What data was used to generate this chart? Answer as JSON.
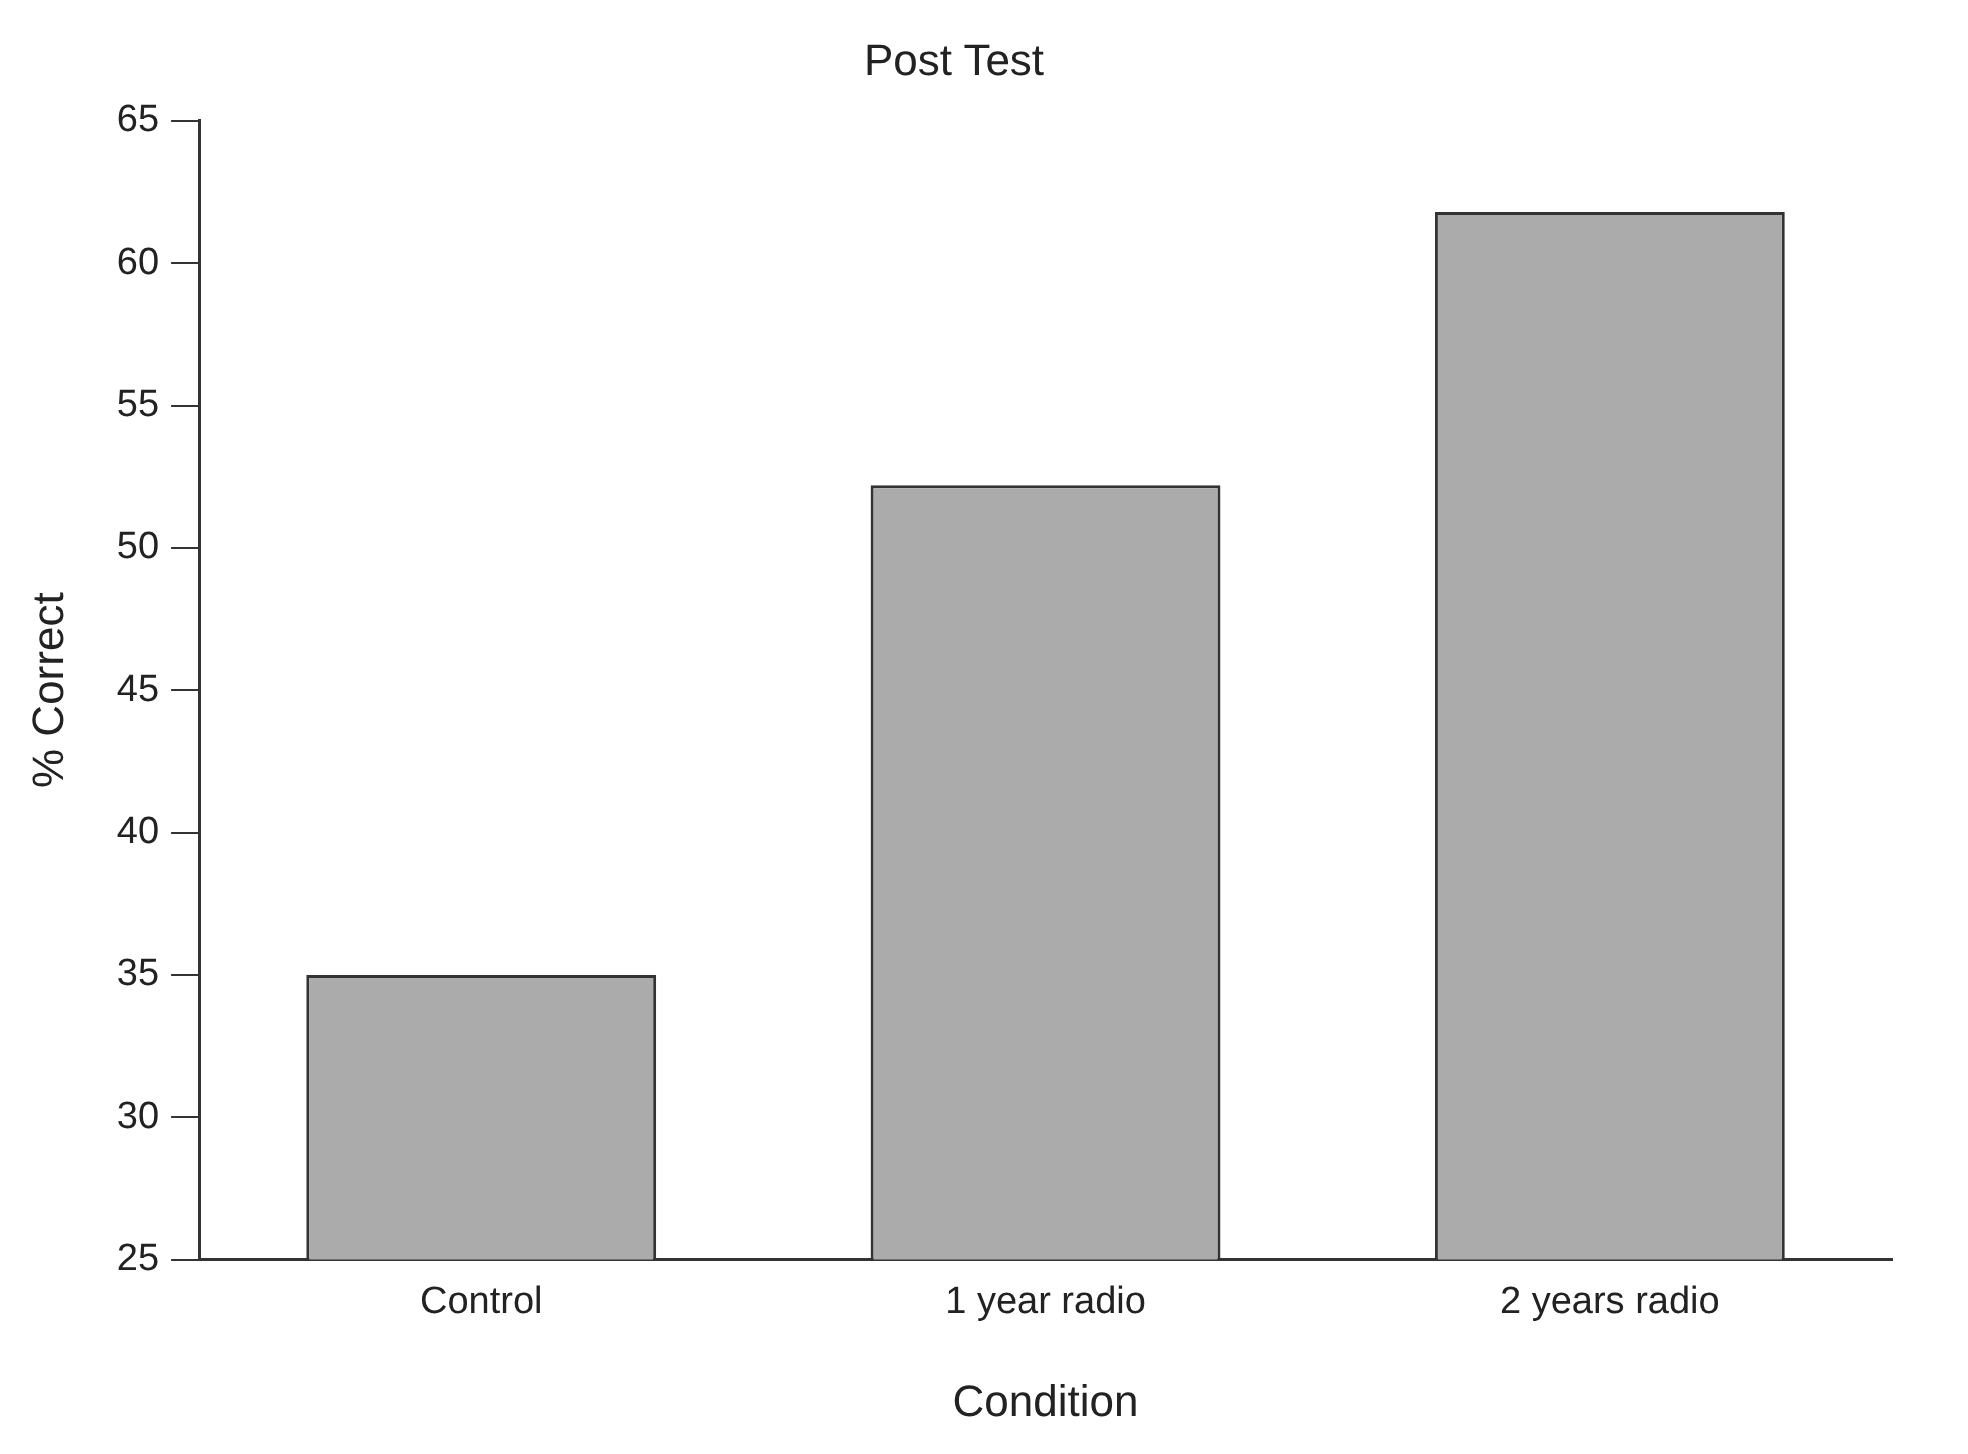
{
  "chart_data": {
    "type": "bar",
    "title": "Post Test",
    "xlabel": "Condition",
    "ylabel": "% Correct",
    "categories": [
      "Control",
      "1 year radio",
      "2 years radio"
    ],
    "values": [
      35,
      52.2,
      61.8
    ],
    "color": "#ababab",
    "ylim": [
      25,
      65
    ],
    "yticks": [
      25,
      30,
      35,
      40,
      45,
      50,
      55,
      60,
      65
    ],
    "grid": false,
    "legend": false
  }
}
